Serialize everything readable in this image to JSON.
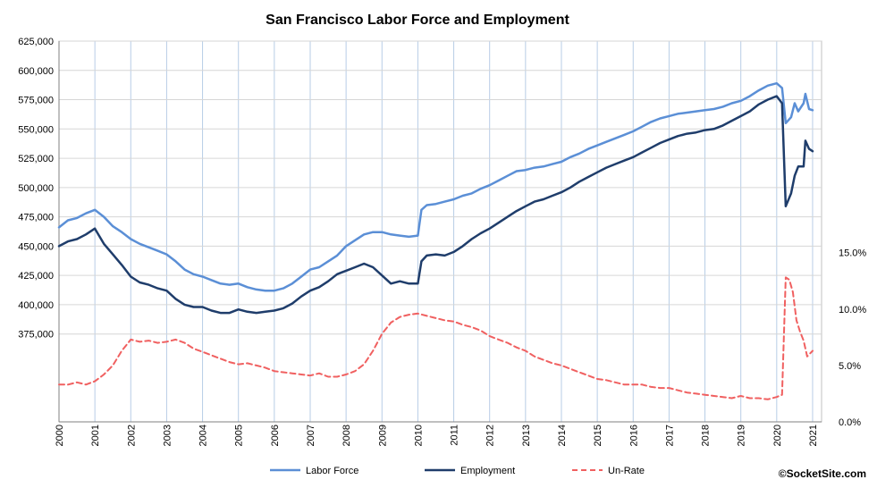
{
  "chart_data": {
    "type": "line",
    "title": "San Francisco Labor Force and Employment",
    "credit": "©SocketSite.com",
    "legend_position": "bottom",
    "grid": true,
    "x_ticks": [
      "2000",
      "2001",
      "2002",
      "2003",
      "2004",
      "2005",
      "2006",
      "2007",
      "2008",
      "2009",
      "2010",
      "2011",
      "2012",
      "2013",
      "2014",
      "2015",
      "2016",
      "2017",
      "2018",
      "2019",
      "2020",
      "2021"
    ],
    "xlim": [
      2000,
      2021.25
    ],
    "y_left": {
      "ylim": [
        300000,
        625000
      ],
      "tick_values": [
        375000,
        400000,
        425000,
        450000,
        475000,
        500000,
        525000,
        550000,
        575000,
        600000,
        625000
      ],
      "tick_labels": [
        "375,000",
        "400,000",
        "425,000",
        "450,000",
        "475,000",
        "500,000",
        "525,000",
        "550,000",
        "575,000",
        "600,000",
        "625,000"
      ]
    },
    "y_right": {
      "ylim": [
        0,
        33.75
      ],
      "tick_values": [
        0,
        5,
        10,
        15
      ],
      "tick_labels": [
        "0.0%",
        "5.0%",
        "10.0%",
        "15.0%"
      ]
    },
    "series": [
      {
        "name": "Labor Force",
        "axis": "left",
        "color": "#5b8fd6",
        "style": "solid",
        "x": [
          2000.0,
          2000.25,
          2000.5,
          2000.75,
          2001.0,
          2001.25,
          2001.5,
          2001.75,
          2002.0,
          2002.25,
          2002.5,
          2002.75,
          2003.0,
          2003.25,
          2003.5,
          2003.75,
          2004.0,
          2004.25,
          2004.5,
          2004.75,
          2005.0,
          2005.25,
          2005.5,
          2005.75,
          2006.0,
          2006.25,
          2006.5,
          2006.75,
          2007.0,
          2007.25,
          2007.5,
          2007.75,
          2008.0,
          2008.25,
          2008.5,
          2008.75,
          2009.0,
          2009.25,
          2009.5,
          2009.75,
          2010.0,
          2010.1,
          2010.25,
          2010.5,
          2010.75,
          2011.0,
          2011.25,
          2011.5,
          2011.75,
          2012.0,
          2012.25,
          2012.5,
          2012.75,
          2013.0,
          2013.25,
          2013.5,
          2013.75,
          2014.0,
          2014.25,
          2014.5,
          2014.75,
          2015.0,
          2015.25,
          2015.5,
          2015.75,
          2016.0,
          2016.25,
          2016.5,
          2016.75,
          2017.0,
          2017.25,
          2017.5,
          2017.75,
          2018.0,
          2018.25,
          2018.5,
          2018.75,
          2019.0,
          2019.25,
          2019.5,
          2019.75,
          2020.0,
          2020.15,
          2020.25,
          2020.4,
          2020.5,
          2020.6,
          2020.75,
          2020.8,
          2020.9,
          2021.0
        ],
        "values": [
          466000,
          472000,
          474000,
          478000,
          481000,
          475000,
          467000,
          462000,
          456000,
          452000,
          449000,
          446000,
          443000,
          437000,
          430000,
          426000,
          424000,
          421000,
          418000,
          417000,
          418000,
          415000,
          413000,
          412000,
          412000,
          414000,
          418000,
          424000,
          430000,
          432000,
          437000,
          442000,
          450000,
          455000,
          460000,
          462000,
          462000,
          460000,
          459000,
          458000,
          459000,
          481000,
          485000,
          486000,
          488000,
          490000,
          493000,
          495000,
          499000,
          502000,
          506000,
          510000,
          514000,
          515000,
          517000,
          518000,
          520000,
          522000,
          526000,
          529000,
          533000,
          536000,
          539000,
          542000,
          545000,
          548000,
          552000,
          556000,
          559000,
          561000,
          563000,
          564000,
          565000,
          566000,
          567000,
          569000,
          572000,
          574000,
          578000,
          583000,
          587000,
          589000,
          585000,
          555000,
          560000,
          572000,
          565000,
          572000,
          580000,
          567000,
          566000
        ]
      },
      {
        "name": "Employment",
        "axis": "left",
        "color": "#1f3d6b",
        "style": "solid",
        "x": [
          2000.0,
          2000.25,
          2000.5,
          2000.75,
          2001.0,
          2001.25,
          2001.5,
          2001.75,
          2002.0,
          2002.25,
          2002.5,
          2002.75,
          2003.0,
          2003.25,
          2003.5,
          2003.75,
          2004.0,
          2004.25,
          2004.5,
          2004.75,
          2005.0,
          2005.25,
          2005.5,
          2005.75,
          2006.0,
          2006.25,
          2006.5,
          2006.75,
          2007.0,
          2007.25,
          2007.5,
          2007.75,
          2008.0,
          2008.25,
          2008.5,
          2008.75,
          2009.0,
          2009.25,
          2009.5,
          2009.75,
          2010.0,
          2010.1,
          2010.25,
          2010.5,
          2010.75,
          2011.0,
          2011.25,
          2011.5,
          2011.75,
          2012.0,
          2012.25,
          2012.5,
          2012.75,
          2013.0,
          2013.25,
          2013.5,
          2013.75,
          2014.0,
          2014.25,
          2014.5,
          2014.75,
          2015.0,
          2015.25,
          2015.5,
          2015.75,
          2016.0,
          2016.25,
          2016.5,
          2016.75,
          2017.0,
          2017.25,
          2017.5,
          2017.75,
          2018.0,
          2018.25,
          2018.5,
          2018.75,
          2019.0,
          2019.25,
          2019.5,
          2019.75,
          2020.0,
          2020.15,
          2020.25,
          2020.4,
          2020.5,
          2020.6,
          2020.75,
          2020.8,
          2020.9,
          2021.0
        ],
        "values": [
          450000,
          454000,
          456000,
          460000,
          465000,
          452000,
          443000,
          434000,
          424000,
          419000,
          417000,
          414000,
          412000,
          405000,
          400000,
          398000,
          398000,
          395000,
          393000,
          393000,
          396000,
          394000,
          393000,
          394000,
          395000,
          397000,
          401000,
          407000,
          412000,
          415000,
          420000,
          426000,
          429000,
          432000,
          435000,
          432000,
          425000,
          418000,
          420000,
          418000,
          418000,
          437000,
          442000,
          443000,
          442000,
          445000,
          450000,
          456000,
          461000,
          465000,
          470000,
          475000,
          480000,
          484000,
          488000,
          490000,
          493000,
          496000,
          500000,
          505000,
          509000,
          513000,
          517000,
          520000,
          523000,
          526000,
          530000,
          534000,
          538000,
          541000,
          544000,
          546000,
          547000,
          549000,
          550000,
          553000,
          557000,
          561000,
          565000,
          571000,
          575000,
          578000,
          572000,
          484000,
          495000,
          510000,
          518000,
          518000,
          540000,
          533000,
          531000
        ]
      },
      {
        "name": "Un-Rate",
        "axis": "right",
        "color": "#f06060",
        "style": "dashed",
        "x": [
          2000.0,
          2000.25,
          2000.5,
          2000.75,
          2001.0,
          2001.25,
          2001.5,
          2001.75,
          2002.0,
          2002.25,
          2002.5,
          2002.75,
          2003.0,
          2003.25,
          2003.5,
          2003.75,
          2004.0,
          2004.25,
          2004.5,
          2004.75,
          2005.0,
          2005.25,
          2005.5,
          2005.75,
          2006.0,
          2006.25,
          2006.5,
          2006.75,
          2007.0,
          2007.25,
          2007.5,
          2007.75,
          2008.0,
          2008.25,
          2008.5,
          2008.75,
          2009.0,
          2009.25,
          2009.5,
          2009.75,
          2010.0,
          2010.25,
          2010.5,
          2010.75,
          2011.0,
          2011.25,
          2011.5,
          2011.75,
          2012.0,
          2012.25,
          2012.5,
          2012.75,
          2013.0,
          2013.25,
          2013.5,
          2013.75,
          2014.0,
          2014.25,
          2014.5,
          2014.75,
          2015.0,
          2015.25,
          2015.5,
          2015.75,
          2016.0,
          2016.25,
          2016.5,
          2016.75,
          2017.0,
          2017.25,
          2017.5,
          2017.75,
          2018.0,
          2018.25,
          2018.5,
          2018.75,
          2019.0,
          2019.25,
          2019.5,
          2019.75,
          2020.0,
          2020.15,
          2020.25,
          2020.35,
          2020.45,
          2020.55,
          2020.65,
          2020.75,
          2020.85,
          2021.0
        ],
        "values": [
          3.3,
          3.3,
          3.5,
          3.3,
          3.6,
          4.2,
          5.0,
          6.3,
          7.3,
          7.1,
          7.2,
          7.0,
          7.1,
          7.3,
          7.0,
          6.5,
          6.2,
          5.9,
          5.6,
          5.3,
          5.1,
          5.2,
          5.0,
          4.8,
          4.5,
          4.4,
          4.3,
          4.2,
          4.1,
          4.3,
          4.0,
          4.0,
          4.2,
          4.5,
          5.1,
          6.3,
          7.8,
          8.8,
          9.3,
          9.5,
          9.6,
          9.4,
          9.2,
          9.0,
          8.9,
          8.6,
          8.4,
          8.1,
          7.6,
          7.3,
          7.0,
          6.6,
          6.3,
          5.8,
          5.5,
          5.2,
          5.0,
          4.7,
          4.4,
          4.1,
          3.8,
          3.7,
          3.5,
          3.3,
          3.3,
          3.3,
          3.1,
          3.0,
          3.0,
          2.8,
          2.6,
          2.5,
          2.4,
          2.3,
          2.2,
          2.1,
          2.3,
          2.1,
          2.1,
          2.0,
          2.2,
          2.4,
          12.8,
          12.6,
          11.5,
          9.0,
          8.0,
          7.2,
          5.8,
          6.3
        ]
      }
    ]
  }
}
